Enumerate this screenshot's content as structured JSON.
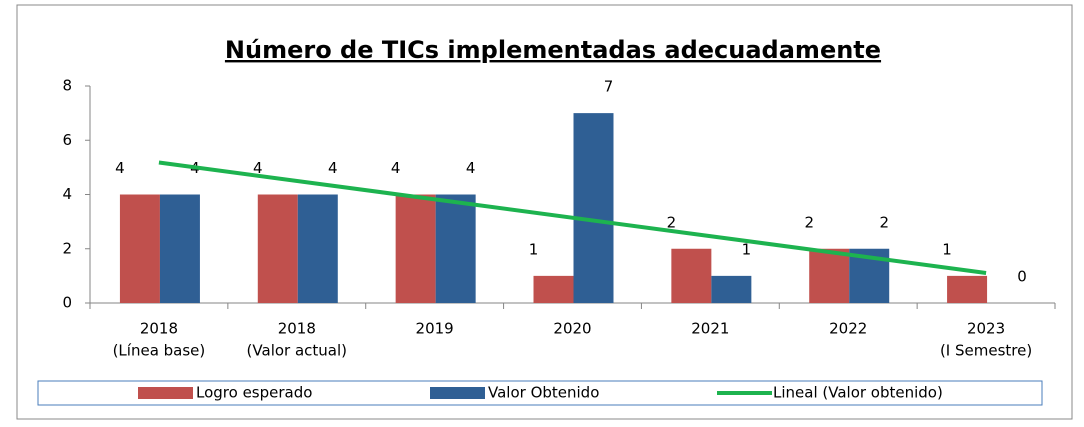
{
  "chart_data": {
    "type": "bar",
    "title": "Número de TICs implementadas adecuadamente",
    "categories": [
      [
        "2018",
        "(Línea base)"
      ],
      [
        "2018",
        "(Valor actual)"
      ],
      [
        "2019"
      ],
      [
        "2020"
      ],
      [
        "2021"
      ],
      [
        "2022"
      ],
      [
        "2023",
        "(I Semestre)"
      ]
    ],
    "series": [
      {
        "name": "Logro esperado",
        "color": "#c0504d",
        "values": [
          4,
          4,
          4,
          1,
          2,
          2,
          1
        ]
      },
      {
        "name": "Valor Obtenido",
        "color": "#2f5f94",
        "values": [
          4,
          4,
          4,
          7,
          1,
          2,
          0
        ]
      }
    ],
    "trendline": {
      "name": "Lineal (Valor obtenido)",
      "color": "#1db34f",
      "series": 1
    },
    "ylim": [
      0,
      8
    ],
    "yticks": [
      0,
      2,
      4,
      6,
      8
    ],
    "grid": false,
    "legend": "bottom"
  }
}
